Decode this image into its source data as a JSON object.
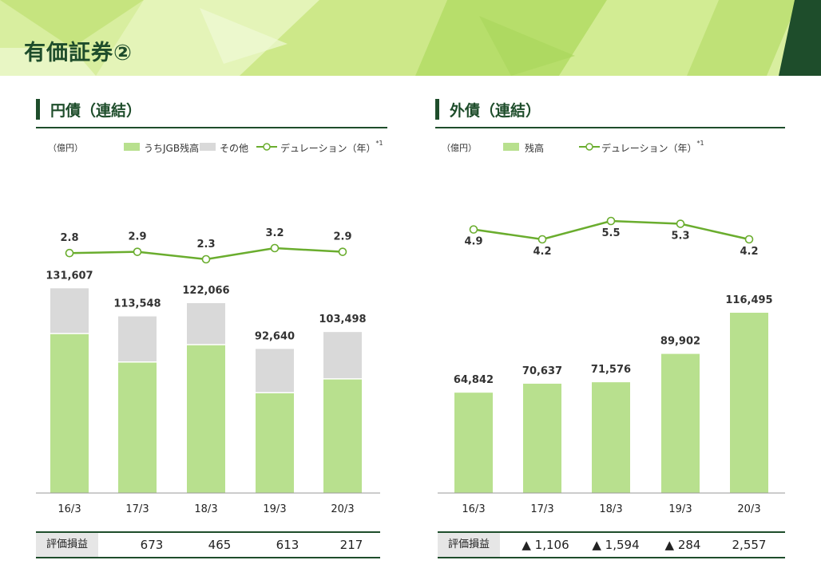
{
  "page": {
    "title": "有価証券②"
  },
  "colors": {
    "dark_green": "#1e4d2b",
    "bar_green": "#b8e08e",
    "bar_gray": "#d9d9d9",
    "line_green": "#6aad2e"
  },
  "chart_data": [
    {
      "type": "bar",
      "title": "円債（連結）",
      "unit": "（億円）",
      "stacked": true,
      "categories": [
        "16/3",
        "17/3",
        "18/3",
        "19/3",
        "20/3"
      ],
      "totals": [
        "131,607",
        "113,548",
        "122,066",
        "92,640",
        "103,498"
      ],
      "series": [
        {
          "name": "うちJGB残高",
          "values": [
            102500,
            84200,
            95400,
            64500,
            73400
          ]
        },
        {
          "name": "その他",
          "values": [
            29107,
            29348,
            26666,
            28140,
            30098
          ]
        }
      ],
      "line": {
        "name": "デュレーション（年）",
        "footnote": "*1",
        "values": [
          2.8,
          2.9,
          2.3,
          3.2,
          2.9
        ],
        "labels": [
          "2.8",
          "2.9",
          "2.3",
          "3.2",
          "2.9"
        ]
      },
      "ylim": [
        0,
        140000
      ],
      "legend_position": "top-left",
      "grid": false,
      "eval": {
        "label": "評価損益",
        "values": [
          "673",
          "465",
          "613",
          "217"
        ]
      }
    },
    {
      "type": "bar",
      "title": "外債（連結）",
      "unit": "（億円）",
      "stacked": false,
      "categories": [
        "16/3",
        "17/3",
        "18/3",
        "19/3",
        "20/3"
      ],
      "totals": [
        "64,842",
        "70,637",
        "71,576",
        "89,902",
        "116,495"
      ],
      "series": [
        {
          "name": "残高",
          "values": [
            64842,
            70637,
            71576,
            89902,
            116495
          ]
        }
      ],
      "line": {
        "name": "デュレーション（年）",
        "footnote": "*1",
        "values": [
          4.9,
          4.2,
          5.5,
          5.3,
          4.2
        ],
        "labels": [
          "4.9",
          "4.2",
          "5.5",
          "5.3",
          "4.2"
        ]
      },
      "ylim": [
        0,
        140000
      ],
      "legend_position": "top-left",
      "grid": false,
      "eval": {
        "label": "評価損益",
        "values": [
          "▲ 1,106",
          "▲ 1,594",
          "▲ 284",
          "2,557"
        ]
      }
    }
  ]
}
